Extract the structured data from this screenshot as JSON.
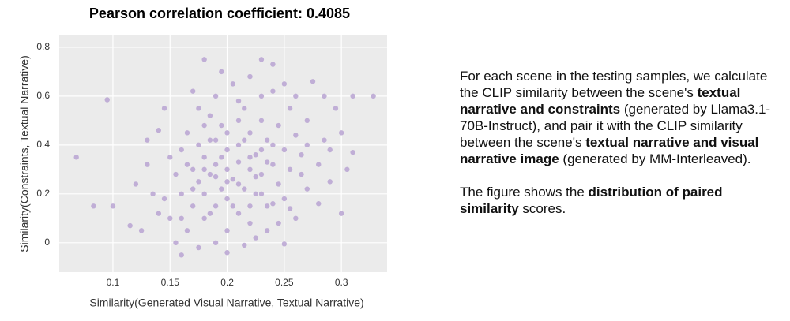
{
  "chart_data": {
    "type": "scatter",
    "title": "Pearson correlation coefficient: 0.4085",
    "x_label": "Similarity(Generated Visual Narrative, Textual Narrative)",
    "y_label": "Similarity(Constraints, Textual Narrative)",
    "color": "#bba7d4",
    "grid": true,
    "xlim": [
      0.053,
      0.34
    ],
    "ylim": [
      -0.12,
      0.848
    ],
    "xticks": [
      0.1,
      0.15,
      0.2,
      0.25,
      0.3
    ],
    "yticks": [
      0,
      0.2,
      0.4,
      0.6,
      0.8
    ],
    "x": [
      0.068,
      0.095,
      0.083,
      0.1,
      0.115,
      0.328,
      0.31,
      0.25,
      0.3,
      0.23,
      0.18,
      0.24,
      0.14,
      0.12,
      0.13,
      0.145,
      0.15,
      0.155,
      0.16,
      0.16,
      0.165,
      0.165,
      0.17,
      0.17,
      0.175,
      0.175,
      0.18,
      0.18,
      0.18,
      0.185,
      0.185,
      0.19,
      0.19,
      0.19,
      0.195,
      0.195,
      0.2,
      0.2,
      0.2,
      0.2,
      0.205,
      0.205,
      0.21,
      0.21,
      0.21,
      0.215,
      0.215,
      0.22,
      0.22,
      0.22,
      0.225,
      0.225,
      0.23,
      0.23,
      0.235,
      0.235,
      0.24,
      0.24,
      0.245,
      0.245,
      0.25,
      0.25,
      0.255,
      0.255,
      0.26,
      0.26,
      0.265,
      0.27,
      0.27,
      0.275,
      0.28,
      0.285,
      0.29,
      0.295,
      0.3,
      0.305,
      0.31,
      0.15,
      0.14,
      0.135,
      0.125,
      0.13,
      0.145,
      0.155,
      0.16,
      0.17,
      0.175,
      0.185,
      0.19,
      0.195,
      0.2,
      0.21,
      0.215,
      0.22,
      0.225,
      0.23,
      0.235,
      0.24,
      0.245,
      0.25,
      0.255,
      0.26,
      0.265,
      0.27,
      0.28,
      0.285,
      0.29,
      0.2,
      0.19,
      0.21,
      0.18,
      0.22,
      0.17,
      0.23,
      0.195,
      0.205,
      0.215,
      0.185,
      0.225,
      0.175,
      0.165,
      0.235,
      0.16,
      0.24,
      0.2,
      0.21,
      0.19,
      0.18,
      0.22,
      0.23
    ],
    "values": [
      0.35,
      0.585,
      0.15,
      0.15,
      0.07,
      0.6,
      0.37,
      -0.005,
      0.12,
      0.75,
      0.75,
      0.73,
      0.46,
      0.24,
      0.32,
      0.18,
      0.1,
      0.28,
      0.38,
      0.2,
      0.05,
      0.45,
      0.3,
      0.15,
      0.55,
      0.25,
      0.35,
      0.1,
      0.2,
      0.42,
      0.28,
      0.6,
      0.15,
      0.32,
      0.22,
      0.48,
      0.3,
      0.05,
      0.38,
      0.18,
      0.65,
      0.26,
      0.4,
      0.12,
      0.33,
      0.22,
      0.55,
      0.3,
      0.45,
      0.08,
      0.36,
      0.2,
      0.5,
      0.28,
      0.15,
      0.42,
      0.62,
      0.32,
      0.24,
      0.48,
      0.38,
      0.18,
      0.55,
      0.3,
      0.44,
      0.1,
      0.36,
      0.5,
      0.22,
      0.66,
      0.32,
      0.42,
      0.25,
      0.55,
      0.45,
      0.3,
      0.6,
      0.35,
      0.12,
      0.2,
      0.05,
      0.42,
      0.55,
      0.0,
      -0.05,
      0.62,
      -0.02,
      0.52,
      0.0,
      0.7,
      -0.04,
      0.58,
      -0.01,
      0.68,
      0.02,
      0.6,
      0.05,
      0.4,
      0.08,
      0.65,
      0.14,
      0.6,
      0.28,
      0.4,
      0.16,
      0.6,
      0.38,
      0.25,
      0.27,
      0.24,
      0.3,
      0.35,
      0.22,
      0.2,
      0.35,
      0.15,
      0.42,
      0.12,
      0.27,
      0.4,
      0.32,
      0.33,
      0.1,
      0.16,
      0.45,
      0.5,
      0.42,
      0.48,
      0.15,
      0.38
    ]
  },
  "description": {
    "paragraphs": [
      [
        {
          "text": "For each scene in the testing samples, we calculate the CLIP similarity between the scene's ",
          "bold": false
        },
        {
          "text": "textual narrative and constraints",
          "bold": true
        },
        {
          "text": " (generated by Llama3.1-70B-Instruct), and pair it with the CLIP similarity between the scene's ",
          "bold": false
        },
        {
          "text": "textual narrative and visual narrative image",
          "bold": true
        },
        {
          "text": " (generated by MM-Interleaved).",
          "bold": false
        }
      ],
      [
        {
          "text": "The figure shows the ",
          "bold": false
        },
        {
          "text": "distribution of paired similarity",
          "bold": true
        },
        {
          "text": " scores.",
          "bold": false
        }
      ]
    ]
  }
}
